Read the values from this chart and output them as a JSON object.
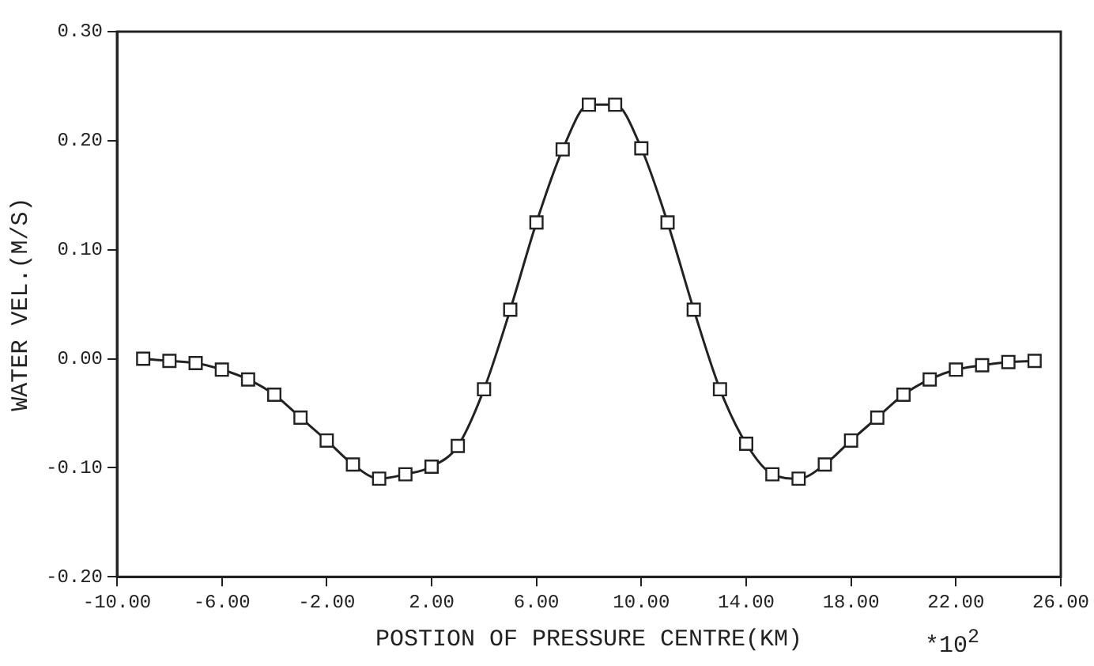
{
  "chart_data": {
    "type": "line",
    "xlabel": "POSTION OF PRESSURE CENTRE(KM)",
    "ylabel": "WATER VEL.(M/S)",
    "annotations": [
      "*10$^{2}$"
    ],
    "x": [
      -9,
      -8,
      -7,
      -6,
      -5,
      -4,
      -3,
      -2,
      -1,
      0,
      1,
      2,
      3,
      4,
      5,
      6,
      7,
      8,
      9,
      10,
      11,
      12,
      13,
      14,
      15,
      16,
      17,
      18,
      19,
      20,
      21,
      22,
      23,
      24,
      25
    ],
    "series": [
      {
        "color": "#222222",
        "values": [
          0.0,
          -0.002,
          -0.004,
          -0.01,
          -0.019,
          -0.033,
          -0.054,
          -0.075,
          -0.097,
          -0.11,
          -0.106,
          -0.099,
          -0.08,
          -0.028,
          0.045,
          0.125,
          0.192,
          0.233,
          0.233,
          0.193,
          0.125,
          0.045,
          -0.028,
          -0.078,
          -0.106,
          -0.11,
          -0.097,
          -0.075,
          -0.054,
          -0.033,
          -0.019,
          -0.01,
          -0.006,
          -0.003,
          -0.002
        ]
      }
    ],
    "xlim": [
      -10,
      26
    ],
    "xticks": [
      {
        "value": -10,
        "label": "-10.00"
      },
      {
        "value": -6,
        "label": "-6.00"
      },
      {
        "value": -2,
        "label": "-2.00"
      },
      {
        "value": 2,
        "label": "2.00"
      },
      {
        "value": 6,
        "label": "6.00"
      },
      {
        "value": 10,
        "label": "10.00"
      },
      {
        "value": 14,
        "label": "14.00"
      },
      {
        "value": 18,
        "label": "18.00"
      },
      {
        "value": 22,
        "label": "22.00"
      },
      {
        "value": 26,
        "label": "26.00"
      }
    ],
    "ylim": [
      -0.2,
      0.3
    ],
    "yticks": [
      {
        "value": -0.2,
        "label": "-0.20"
      },
      {
        "value": -0.1,
        "label": "-0.10"
      },
      {
        "value": 0,
        "label": "0.00"
      },
      {
        "value": 0.1,
        "label": "0.10"
      },
      {
        "value": 0.2,
        "label": "0.20"
      },
      {
        "value": 0.3,
        "label": "0.30"
      }
    ],
    "grid": false,
    "legend": false,
    "marker": "square",
    "line_style": "solid"
  }
}
